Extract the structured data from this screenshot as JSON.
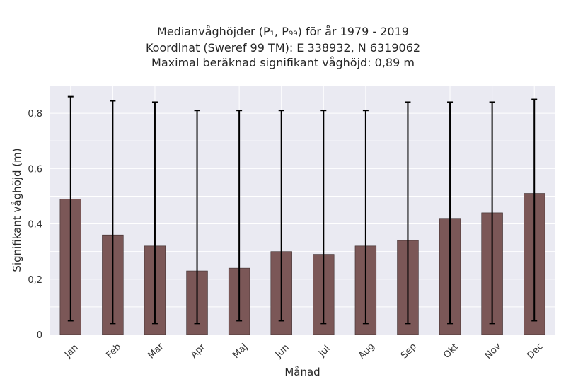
{
  "title_lines": [
    "Medianvåghöjder (P₁, P₉₉) för år 1979 - 2019",
    "Koordinat (Sweref 99 TM): E 338932, N 6319062",
    "Maximal beräknad signifikant våghöjd: 0,89 m"
  ],
  "chart_data": {
    "type": "bar",
    "categories": [
      "Jan",
      "Feb",
      "Mar",
      "Apr",
      "Maj",
      "Jun",
      "Jul",
      "Aug",
      "Sep",
      "Okt",
      "Nov",
      "Dec"
    ],
    "values": [
      0.49,
      0.36,
      0.32,
      0.23,
      0.24,
      0.3,
      0.29,
      0.32,
      0.34,
      0.42,
      0.44,
      0.51
    ],
    "error_low": [
      0.05,
      0.04,
      0.04,
      0.04,
      0.05,
      0.05,
      0.04,
      0.04,
      0.04,
      0.04,
      0.04,
      0.05
    ],
    "error_high": [
      0.86,
      0.845,
      0.84,
      0.81,
      0.81,
      0.81,
      0.81,
      0.81,
      0.84,
      0.84,
      0.84,
      0.85
    ],
    "xlabel": "Månad",
    "ylabel": "Signifikant våghöjd (m)",
    "ylim": [
      0,
      0.9
    ],
    "yticks": [
      0,
      0.2,
      0.4,
      0.6,
      0.8
    ],
    "ytick_labels": [
      "0",
      "0,2",
      "0,4",
      "0,6",
      "0,8"
    ],
    "grid": true,
    "bar_color": "#7b5757",
    "background_color": "#eaeaf2"
  }
}
